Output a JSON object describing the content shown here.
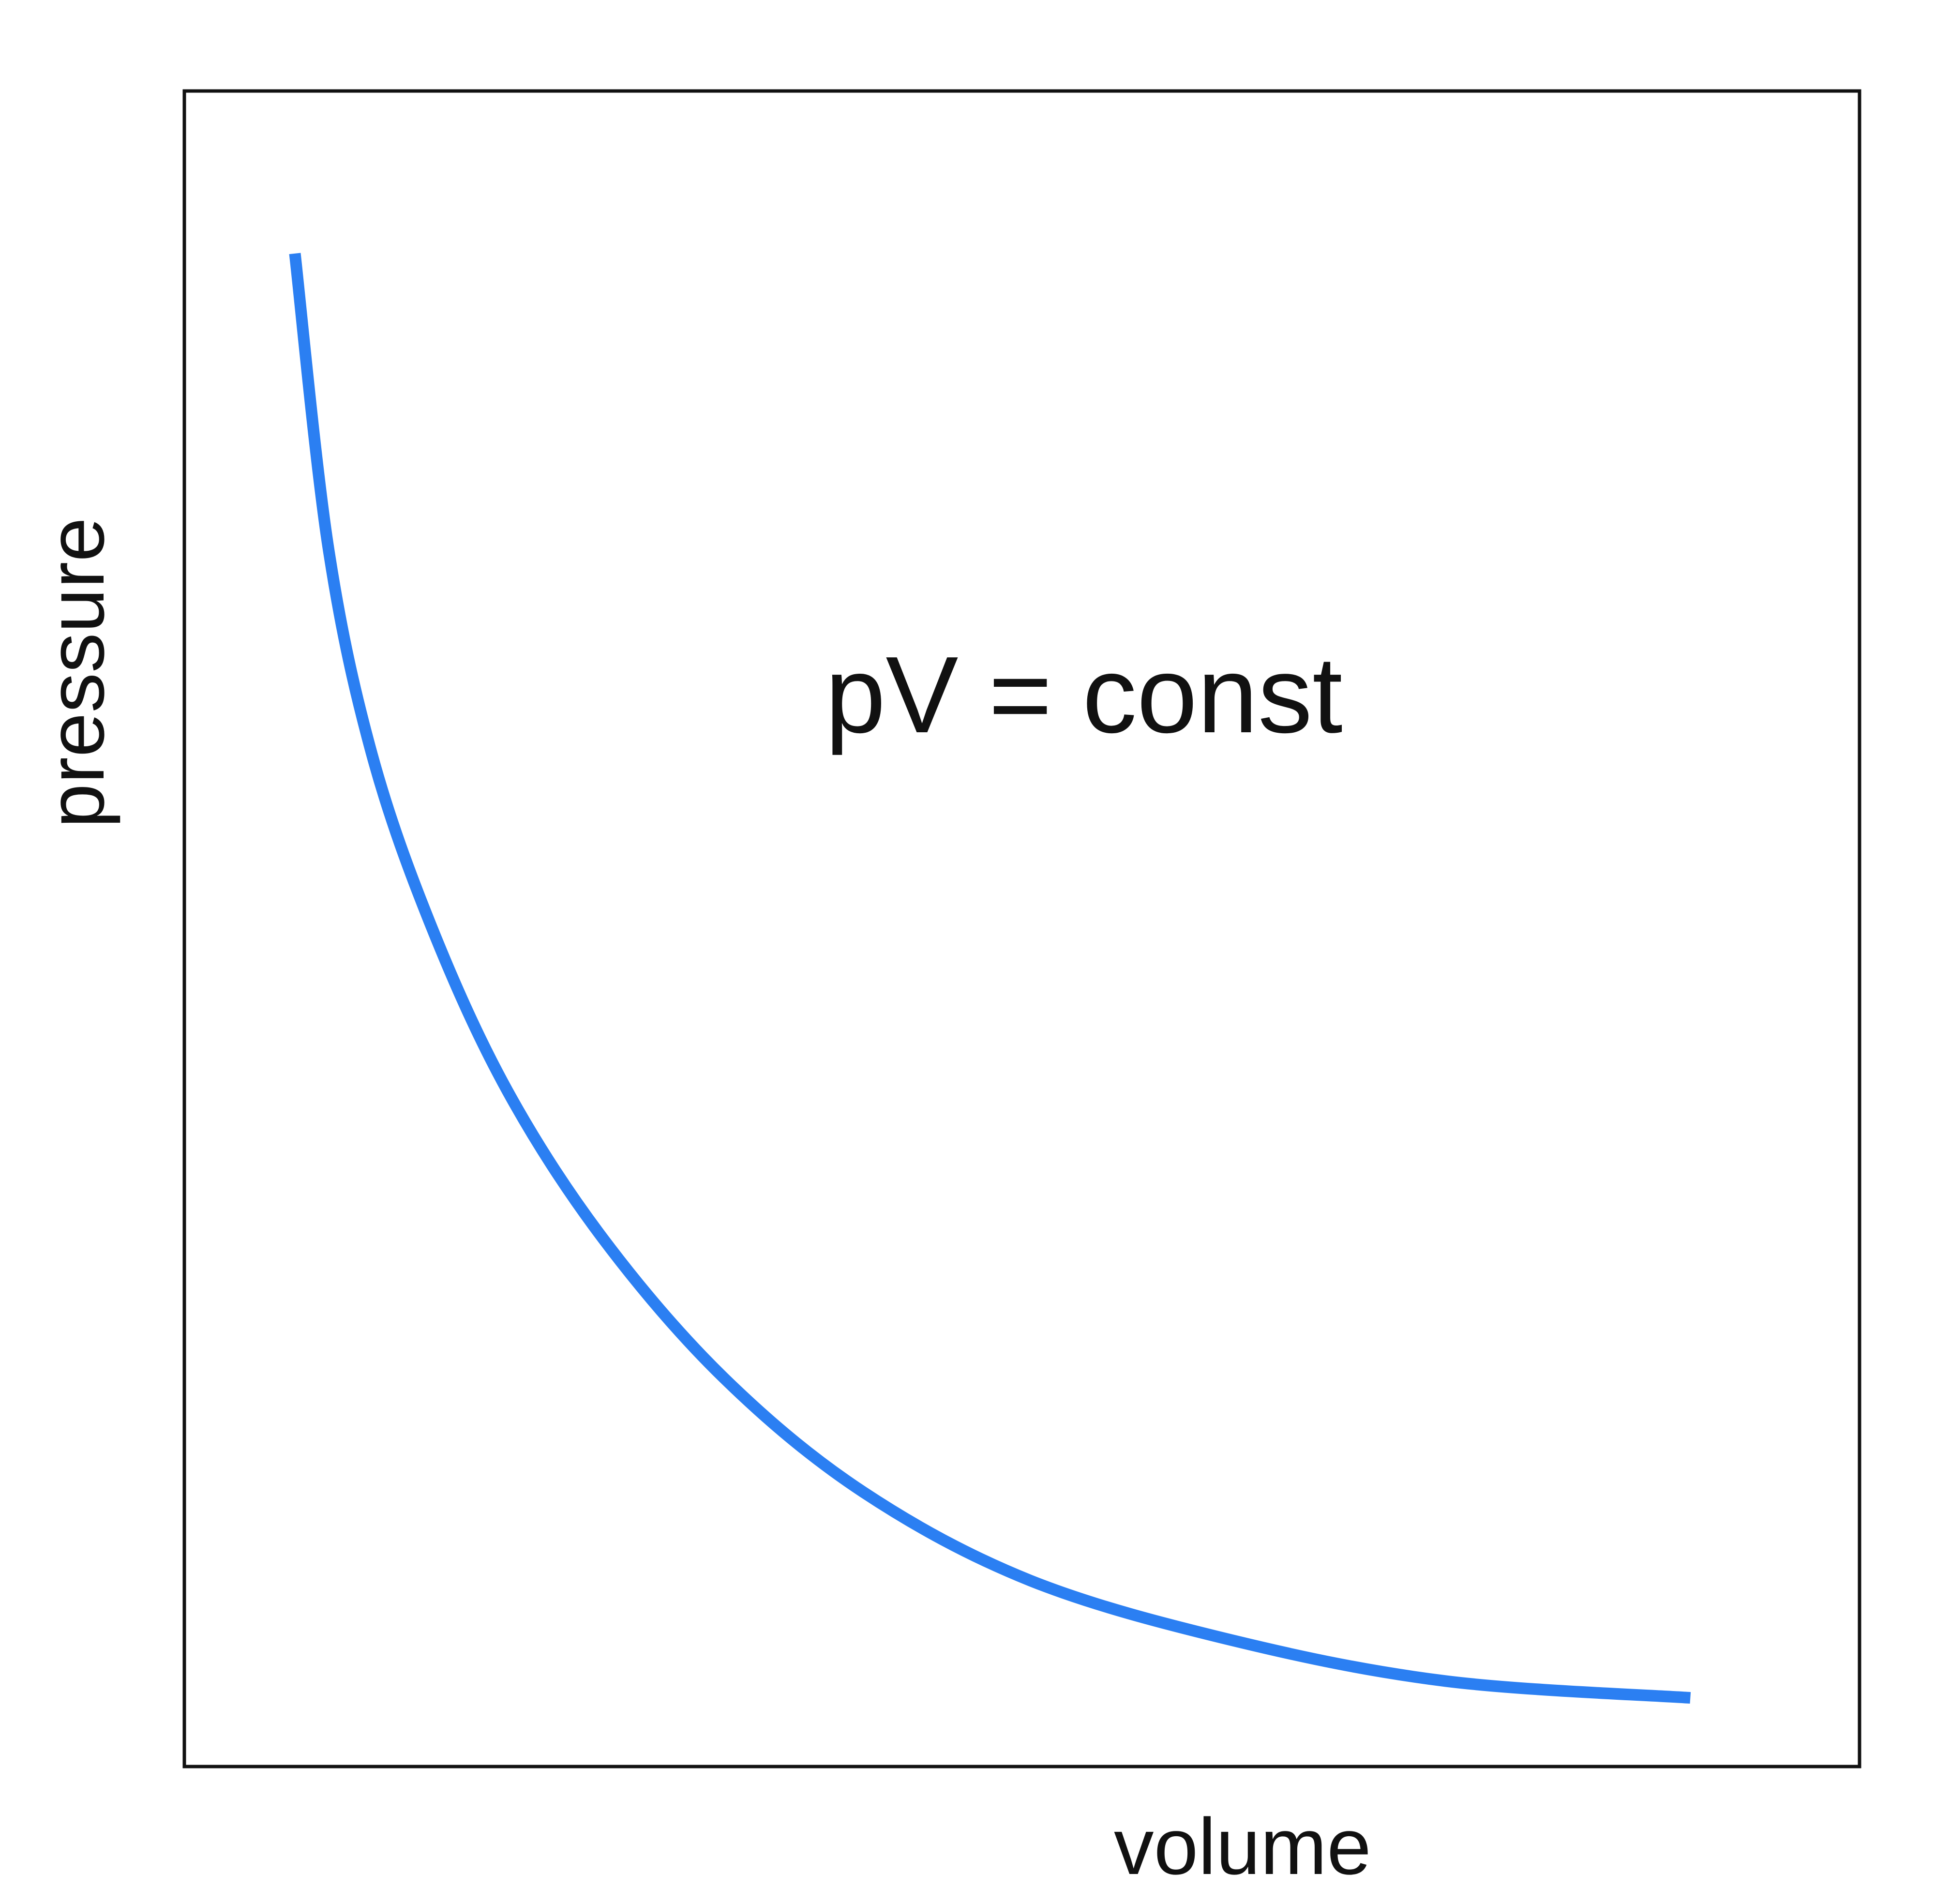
{
  "chart_data": {
    "type": "line",
    "title": "",
    "annotation": "pV = const",
    "xlabel": "volume",
    "ylabel": "pressure",
    "xlim": [
      0,
      1
    ],
    "ylim": [
      0,
      1
    ],
    "grid": false,
    "legend": "none",
    "series": [
      {
        "color": "#2b7ff2",
        "points": [
          [
            0.066,
            0.903
          ],
          [
            0.086,
            0.727
          ],
          [
            0.112,
            0.604
          ],
          [
            0.148,
            0.5
          ],
          [
            0.193,
            0.403
          ],
          [
            0.25,
            0.315
          ],
          [
            0.322,
            0.232
          ],
          [
            0.405,
            0.164
          ],
          [
            0.505,
            0.111
          ],
          [
            0.627,
            0.075
          ],
          [
            0.753,
            0.051
          ],
          [
            0.899,
            0.041
          ]
        ]
      }
    ]
  }
}
